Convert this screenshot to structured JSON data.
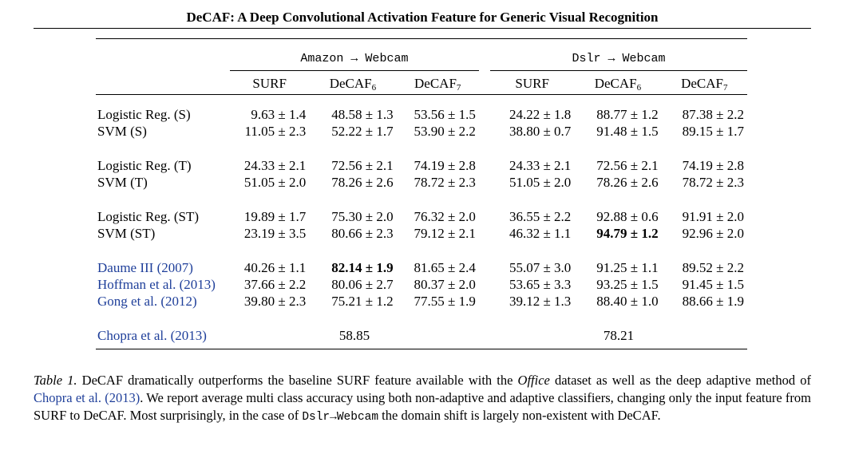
{
  "running_head": "DeCAF: A Deep Convolutional Activation Feature for Generic Visual Recognition",
  "table": {
    "groups": [
      "Amazon → Webcam",
      "Dslr → Webcam"
    ],
    "columns": [
      {
        "base": "SURF",
        "sub": ""
      },
      {
        "base": "DeCAF",
        "sub": "6"
      },
      {
        "base": "DeCAF",
        "sub": "7"
      },
      {
        "base": "SURF",
        "sub": ""
      },
      {
        "base": "DeCAF",
        "sub": "6"
      },
      {
        "base": "DeCAF",
        "sub": "7"
      }
    ],
    "blocks": [
      [
        {
          "label": "Logistic Reg. (S)",
          "values": [
            "9.63 ± 1.4",
            "48.58 ± 1.3",
            "53.56 ± 1.5",
            "24.22 ± 1.8",
            "88.77 ± 1.2",
            "87.38 ± 2.2"
          ]
        },
        {
          "label": "SVM (S)",
          "values": [
            "11.05 ± 2.3",
            "52.22 ± 1.7",
            "53.90 ± 2.2",
            "38.80 ± 0.7",
            "91.48 ± 1.5",
            "89.15 ± 1.7"
          ]
        }
      ],
      [
        {
          "label": "Logistic Reg. (T)",
          "values": [
            "24.33 ± 2.1",
            "72.56 ± 2.1",
            "74.19 ± 2.8",
            "24.33 ± 2.1",
            "72.56 ± 2.1",
            "74.19 ± 2.8"
          ]
        },
        {
          "label": "SVM (T)",
          "values": [
            "51.05 ± 2.0",
            "78.26 ± 2.6",
            "78.72 ± 2.3",
            "51.05 ± 2.0",
            "78.26 ± 2.6",
            "78.72 ± 2.3"
          ]
        }
      ],
      [
        {
          "label": "Logistic Reg. (ST)",
          "values": [
            "19.89 ± 1.7",
            "75.30 ± 2.0",
            "76.32 ± 2.0",
            "36.55 ± 2.2",
            "92.88 ± 0.6",
            "91.91 ± 2.0"
          ]
        },
        {
          "label": "SVM (ST)",
          "values": [
            "23.19 ± 3.5",
            "80.66 ± 2.3",
            "79.12 ± 2.1",
            "46.32 ± 1.1",
            "94.79 ± 1.2",
            "92.96 ± 2.0"
          ]
        }
      ],
      [
        {
          "label": "Daume III (2007)",
          "values": [
            "40.26 ± 1.1",
            "82.14 ± 1.9",
            "81.65 ± 2.4",
            "55.07 ± 3.0",
            "91.25 ± 1.1",
            "89.52 ± 2.2"
          ]
        },
        {
          "label": "Hoffman et al. (2013)",
          "values": [
            "37.66 ± 2.2",
            "80.06 ± 2.7",
            "80.37 ± 2.0",
            "53.65 ± 3.3",
            "93.25 ± 1.5",
            "91.45 ± 1.5"
          ]
        },
        {
          "label": "Gong et al. (2012)",
          "values": [
            "39.80 ± 2.3",
            "75.21 ± 1.2",
            "77.55 ± 1.9",
            "39.12 ± 1.3",
            "88.40 ± 1.0",
            "88.66 ± 1.9"
          ]
        }
      ]
    ],
    "chopra": {
      "label": "Chopra et al. (2013)",
      "amazon_webcam": "58.85",
      "dslr_webcam": "78.21"
    }
  },
  "caption": {
    "label": "Table 1.",
    "part1": " DeCAF dramatically outperforms the baseline SURF feature available with the ",
    "office": "Office",
    "part2": " dataset as well as the deep adaptive method of ",
    "cite": "Chopra et al. (2013)",
    "part3": ". We report average multi class accuracy using both non-adaptive and adaptive classifiers, changing only the input feature from SURF to DeCAF. Most surprisingly, in the case of ",
    "code": "Dslr→Webcam",
    "part4": " the domain shift is largely non-existent with DeCAF."
  }
}
